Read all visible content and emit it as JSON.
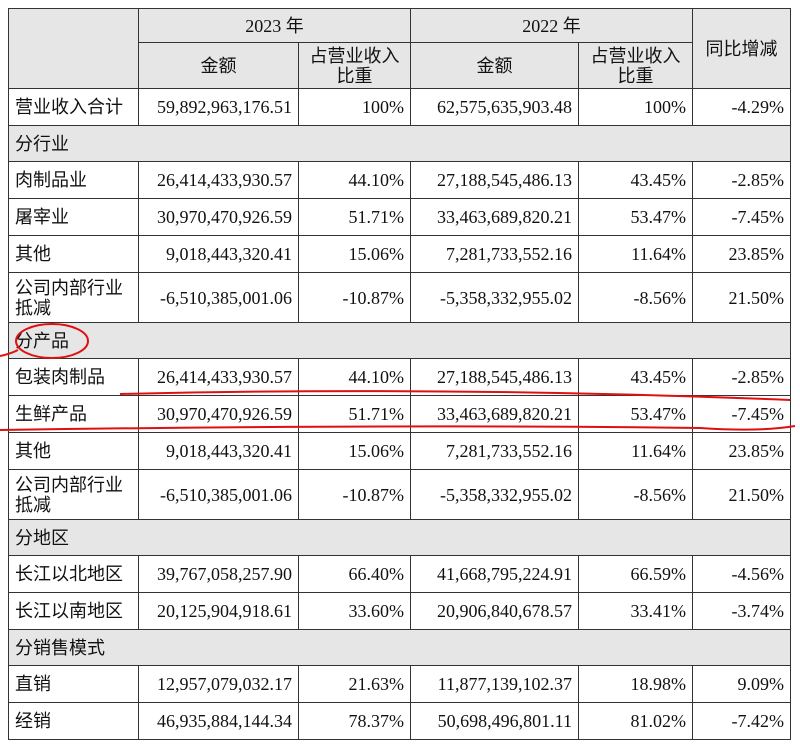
{
  "table": {
    "header": [
      "2023 年",
      "2022 年",
      "同比增减"
    ],
    "subheader": [
      "金额",
      "占营业收入比重",
      "金额",
      "占营业收入比重"
    ],
    "rows": [
      [
        "营业收入合计",
        "59,892,963,176.51",
        "100%",
        "62,575,635,903.48",
        "100%",
        "-4.29%"
      ],
      [
        "分行业"
      ],
      [
        "肉制品业",
        "26,414,433,930.57",
        "44.10%",
        "27,188,545,486.13",
        "43.45%",
        "-2.85%"
      ],
      [
        "屠宰业",
        "30,970,470,926.59",
        "51.71%",
        "33,463,689,820.21",
        "53.47%",
        "-7.45%"
      ],
      [
        "其他",
        "9,018,443,320.41",
        "15.06%",
        "7,281,733,552.16",
        "11.64%",
        "23.85%"
      ],
      [
        "公司内部行业抵减",
        "-6,510,385,001.06",
        "-10.87%",
        "-5,358,332,955.02",
        "-8.56%",
        "21.50%"
      ],
      [
        "分产品"
      ],
      [
        "包装肉制品",
        "26,414,433,930.57",
        "44.10%",
        "27,188,545,486.13",
        "43.45%",
        "-2.85%"
      ],
      [
        "生鲜产品",
        "30,970,470,926.59",
        "51.71%",
        "33,463,689,820.21",
        "53.47%",
        "-7.45%"
      ],
      [
        "其他",
        "9,018,443,320.41",
        "15.06%",
        "7,281,733,552.16",
        "11.64%",
        "23.85%"
      ],
      [
        "公司内部行业抵减",
        "-6,510,385,001.06",
        "-10.87%",
        "-5,358,332,955.02",
        "-8.56%",
        "21.50%"
      ],
      [
        "分地区"
      ],
      [
        "长江以北地区",
        "39,767,058,257.90",
        "66.40%",
        "41,668,795,224.91",
        "66.59%",
        "-4.56%"
      ],
      [
        "长江以南地区",
        "20,125,904,918.61",
        "33.60%",
        "20,906,840,678.57",
        "33.41%",
        "-3.74%"
      ],
      [
        "分销售模式"
      ],
      [
        "直销",
        "12,957,079,032.17",
        "21.63%",
        "11,877,139,102.37",
        "18.98%",
        "9.09%"
      ],
      [
        "经销",
        "46,935,884,144.34",
        "78.37%",
        "50,698,496,801.11",
        "81.02%",
        "-7.42%"
      ]
    ]
  }
}
